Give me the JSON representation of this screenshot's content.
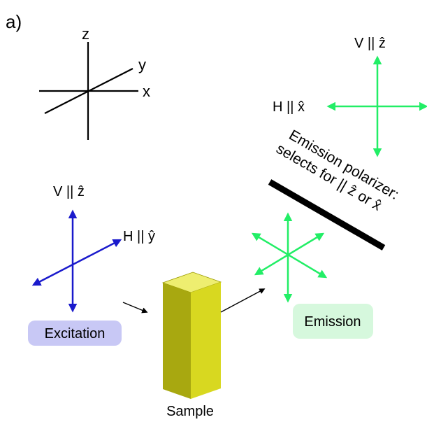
{
  "panel_label": "a)",
  "axes": {
    "z": "z",
    "y": "y",
    "x": "x"
  },
  "excitation": {
    "v_label": "V || ẑ",
    "h_label": "H || ŷ",
    "box_label": "Excitation",
    "arrow_color": "#1a1acc",
    "box_color": "#c8c8f5"
  },
  "emission": {
    "v_label": "V || ẑ",
    "h_label": "H || x̂",
    "box_label": "Emission",
    "arrow_color": "#22ee66",
    "box_color": "#d6f8dd"
  },
  "polarizer": {
    "line1": "Emission polarizer:",
    "line2": "selects for || ẑ or x̂"
  },
  "sample": {
    "label": "Sample",
    "front_color": "#d8d820",
    "side_color": "#a8a810",
    "top_color": "#eeee70"
  }
}
